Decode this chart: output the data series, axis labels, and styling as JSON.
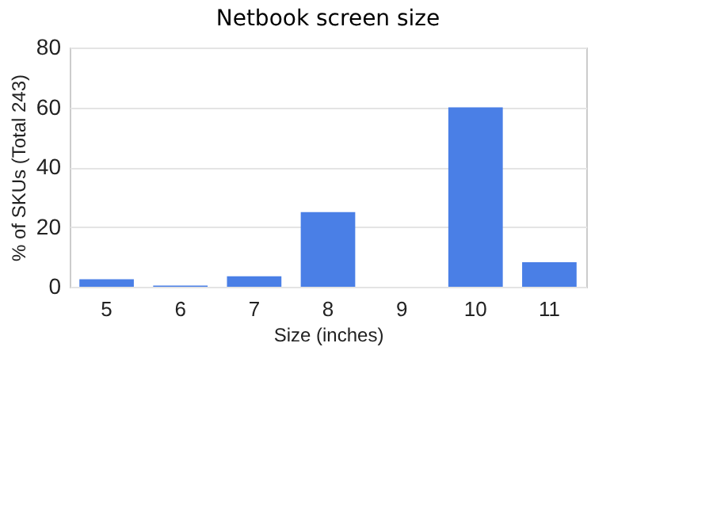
{
  "chart_data": {
    "type": "bar",
    "title": "Netbook screen size",
    "xlabel": "Size (inches)",
    "ylabel": "% of SKUs (Total 243)",
    "categories": [
      "5",
      "6",
      "7",
      "8",
      "9",
      "10",
      "11"
    ],
    "values": [
      2.5,
      0.4,
      3.5,
      25,
      0,
      60,
      8.2
    ],
    "color": "#4a7fe6",
    "ylim": [
      0,
      80
    ],
    "yticks": [
      0,
      20,
      40,
      60,
      80
    ],
    "grid": "y"
  }
}
